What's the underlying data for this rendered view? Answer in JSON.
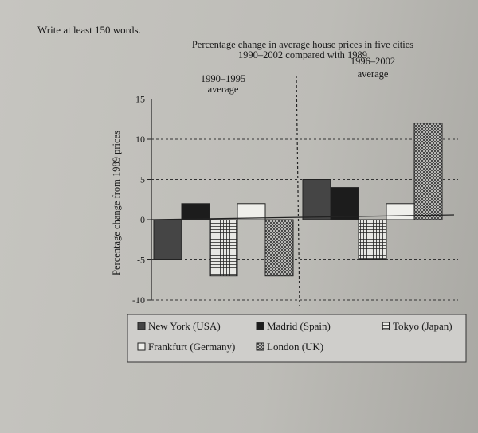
{
  "instruction": "Write at least 150 words.",
  "chart_data": {
    "type": "bar",
    "title": "Percentage change in average house prices in five cities",
    "subtitle": "1990–2002 compared with 1989",
    "categories": [
      "1990–1995 average",
      "1996–2002 average"
    ],
    "category_lines": [
      [
        "1990–1995",
        "average"
      ],
      [
        "1996–2002",
        "average"
      ]
    ],
    "ylabel": "Percentage change from 1989 prices",
    "xlabel": "",
    "ylim": [
      -10,
      15
    ],
    "yticks": [
      15,
      10,
      5,
      0,
      -5,
      -10
    ],
    "grid": true,
    "legend_placement": "bottom",
    "series": [
      {
        "name": "New York (USA)",
        "values": [
          -5,
          5
        ],
        "fill": "dark-grey"
      },
      {
        "name": "Madrid (Spain)",
        "values": [
          2,
          4
        ],
        "fill": "black"
      },
      {
        "name": "Tokyo (Japan)",
        "values": [
          -7,
          -5
        ],
        "fill": "grid"
      },
      {
        "name": "Frankfurt (Germany)",
        "values": [
          2,
          2
        ],
        "fill": "white"
      },
      {
        "name": "London (UK)",
        "values": [
          -7,
          12
        ],
        "fill": "crosshatch"
      }
    ]
  }
}
